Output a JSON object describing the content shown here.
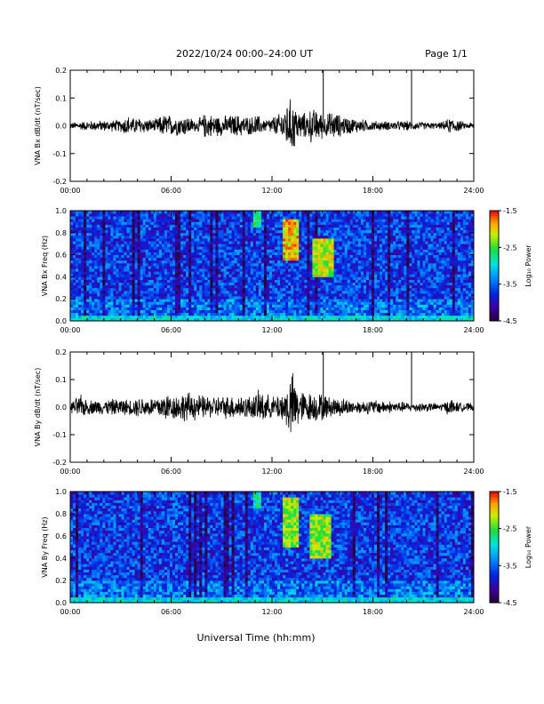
{
  "header": {
    "title": "2022/10/24  00:00–24:00 UT",
    "page": "Page 1/1"
  },
  "x_axis_title": "Universal Time (hh:mm)",
  "chart_data": [
    {
      "id": "bx_wave",
      "type": "line",
      "ylabel": "VNA Bx dB/dt (nT/sec)",
      "xlim": [
        0,
        24
      ],
      "ylim": [
        -0.2,
        0.2
      ],
      "x_ticks": [
        "00:00",
        "06:00",
        "12:00",
        "18:00",
        "24:00"
      ],
      "y_ticks": [
        "-0.2",
        "-0.1",
        "0.0",
        "0.1",
        "0.2"
      ],
      "y_tick_values": [
        -0.2,
        -0.1,
        0.0,
        0.1,
        0.2
      ],
      "envelope": {
        "x": [
          0,
          1,
          2,
          3,
          3.4,
          3.6,
          4,
          5,
          5.7,
          6,
          7,
          7.5,
          8,
          9,
          10,
          10.8,
          11,
          11.5,
          12,
          12.5,
          12.7,
          12.9,
          13.2,
          13.6,
          14,
          14.3,
          14.6,
          14.9,
          15.2,
          15.6,
          16,
          16.5,
          17,
          18,
          19,
          20,
          21,
          22,
          22.7,
          23,
          23.5,
          24
        ],
        "amplitude": [
          0.013,
          0.02,
          0.022,
          0.024,
          0.045,
          0.03,
          0.035,
          0.025,
          0.05,
          0.04,
          0.04,
          0.02,
          0.05,
          0.04,
          0.045,
          0.035,
          0.05,
          0.025,
          0.035,
          0.05,
          0.07,
          0.1,
          0.11,
          0.06,
          0.05,
          0.07,
          0.065,
          0.055,
          0.045,
          0.06,
          0.045,
          0.035,
          0.03,
          0.02,
          0.018,
          0.02,
          0.015,
          0.012,
          0.035,
          0.025,
          0.012,
          0.015
        ]
      },
      "spikes": [
        {
          "x": 15.05,
          "y": 0.21
        },
        {
          "x": 20.3,
          "y": 0.22
        }
      ]
    },
    {
      "id": "bx_spec",
      "type": "heatmap",
      "ylabel": "VNA Bx Freq (Hz)",
      "xlim": [
        0,
        24
      ],
      "ylim": [
        0,
        1.0
      ],
      "x_ticks": [
        "00:00",
        "06:00",
        "12:00",
        "18:00",
        "24:00"
      ],
      "y_ticks": [
        "0.0",
        "0.2",
        "0.4",
        "0.6",
        "0.8",
        "1.0"
      ],
      "y_tick_values": [
        0.0,
        0.2,
        0.4,
        0.6,
        0.8,
        1.0
      ],
      "colorbar_label": "Log₁₀ Power",
      "colorbar_ticks": [
        "-1.5",
        "-2.5",
        "-3.5",
        "-4.5"
      ],
      "colorbar_tick_values": [
        -1.5,
        -2.5,
        -3.5,
        -4.5
      ],
      "colorbar_range": [
        -4.5,
        -1.5
      ],
      "background": -3.7,
      "low_band": -3.0,
      "features": [
        {
          "t0": 12.6,
          "t1": 13.6,
          "f0": 0.55,
          "f1": 0.92,
          "level": -2.0
        },
        {
          "t0": 10.9,
          "t1": 11.3,
          "f0": 0.85,
          "f1": 1.0,
          "level": -2.7
        },
        {
          "t0": 14.4,
          "t1": 15.7,
          "f0": 0.4,
          "f1": 0.75,
          "level": -2.2
        }
      ]
    },
    {
      "id": "by_wave",
      "type": "line",
      "ylabel": "VNA By dB/dt (nT/sec)",
      "xlim": [
        0,
        24
      ],
      "ylim": [
        -0.2,
        0.2
      ],
      "x_ticks": [
        "00:00",
        "06:00",
        "12:00",
        "18:00",
        "24:00"
      ],
      "y_ticks": [
        "-0.2",
        "-0.1",
        "0.0",
        "0.1",
        "0.2"
      ],
      "y_tick_values": [
        -0.2,
        -0.1,
        0.0,
        0.1,
        0.2
      ],
      "envelope": {
        "x": [
          0,
          0.6,
          1,
          2,
          3,
          3.5,
          4,
          5,
          5.7,
          6,
          7,
          8,
          9,
          10,
          10.8,
          11.3,
          12,
          12.5,
          12.8,
          13,
          13.3,
          13.6,
          14,
          14.5,
          15,
          15.5,
          16,
          17,
          18,
          19,
          20,
          21,
          22,
          22.7,
          23,
          24
        ],
        "amplitude": [
          0.02,
          0.05,
          0.03,
          0.03,
          0.035,
          0.03,
          0.04,
          0.04,
          0.06,
          0.05,
          0.06,
          0.045,
          0.045,
          0.05,
          0.045,
          0.07,
          0.04,
          0.06,
          0.07,
          0.12,
          0.14,
          0.07,
          0.06,
          0.06,
          0.055,
          0.04,
          0.04,
          0.025,
          0.03,
          0.025,
          0.02,
          0.02,
          0.015,
          0.035,
          0.02,
          0.015
        ]
      },
      "spikes": [
        {
          "x": 15.05,
          "y": 0.2
        },
        {
          "x": 20.3,
          "y": 0.2
        }
      ]
    },
    {
      "id": "by_spec",
      "type": "heatmap",
      "ylabel": "VNA By Freq (Hz)",
      "xlim": [
        0,
        24
      ],
      "ylim": [
        0,
        1.0
      ],
      "x_ticks": [
        "00:00",
        "06:00",
        "12:00",
        "18:00",
        "24:00"
      ],
      "y_ticks": [
        "0.0",
        "0.2",
        "0.4",
        "0.6",
        "0.8",
        "1.0"
      ],
      "y_tick_values": [
        0.0,
        0.2,
        0.4,
        0.6,
        0.8,
        1.0
      ],
      "colorbar_label": "Log₁₀ Power",
      "colorbar_ticks": [
        "-1.5",
        "-2.5",
        "-3.5",
        "-4.5"
      ],
      "colorbar_tick_values": [
        -1.5,
        -2.5,
        -3.5,
        -4.5
      ],
      "colorbar_range": [
        -4.5,
        -1.5
      ],
      "background": -3.7,
      "low_band": -3.0,
      "features": [
        {
          "t0": 12.6,
          "t1": 13.6,
          "f0": 0.5,
          "f1": 0.95,
          "level": -2.3
        },
        {
          "t0": 10.9,
          "t1": 11.3,
          "f0": 0.85,
          "f1": 1.0,
          "level": -2.8
        },
        {
          "t0": 14.3,
          "t1": 15.6,
          "f0": 0.4,
          "f1": 0.8,
          "level": -2.3
        }
      ]
    }
  ]
}
